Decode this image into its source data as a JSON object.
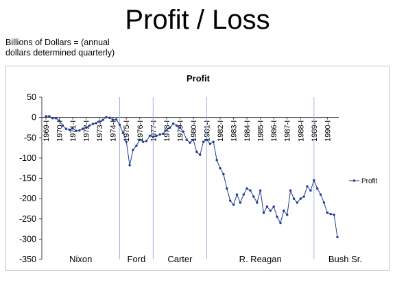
{
  "slide": {
    "title": "Profit / Loss",
    "subtitle_line1": "Billions of Dollars = (annual",
    "subtitle_line2": "dollars determined quarterly)"
  },
  "colors": {
    "series": "#1f3a93",
    "markers": "#1f3a93",
    "presidential_lines": "#9db5dc",
    "axis": "#404040"
  },
  "chart_data": {
    "type": "line",
    "title": "Profit",
    "xlabel": "",
    "ylabel": "",
    "ylim": [
      -350,
      50
    ],
    "yticks": [
      50,
      0,
      -50,
      -100,
      -150,
      -200,
      -250,
      -300,
      -350
    ],
    "grid": false,
    "legend": "right",
    "x_tick_labels": [
      "1969-I",
      "1970-I",
      "1971-I",
      "1972-I",
      "1973-I",
      "1974-I",
      "1975-I",
      "1976-I",
      "1977-I",
      "1978-I",
      "1979-I",
      "1980-I",
      "1981-I",
      "1982-I",
      "1983-I",
      "1984-I",
      "1985-I",
      "1986-I",
      "1987-I",
      "1988-I",
      "1989-I",
      "1990-I"
    ],
    "x_start": "1969-I",
    "presidents": [
      "Nixon",
      "Ford",
      "Carter",
      "R. Reagan",
      "Bush Sr."
    ],
    "term_boundaries": [
      "1974-III",
      "1977-I",
      "1981-I",
      "1989-I"
    ],
    "series": [
      {
        "name": "Profit",
        "values": [
          3,
          3,
          -2,
          -2,
          -8,
          -20,
          -28,
          -30,
          -27,
          -33,
          -32,
          -28,
          -25,
          -20,
          -16,
          -14,
          -10,
          -6,
          1,
          -1,
          -6,
          -5,
          -18,
          -38,
          -60,
          -118,
          -80,
          -70,
          -55,
          -60,
          -58,
          -45,
          -48,
          -45,
          -42,
          -40,
          -32,
          -25,
          -15,
          -20,
          -25,
          -35,
          -55,
          -62,
          -55,
          -85,
          -92,
          -60,
          -55,
          -65,
          -60,
          -105,
          -125,
          -140,
          -175,
          -205,
          -215,
          -190,
          -210,
          -190,
          -175,
          -180,
          -195,
          -210,
          -180,
          -235,
          -220,
          -230,
          -220,
          -245,
          -260,
          -230,
          -240,
          -180,
          -200,
          -210,
          -200,
          -195,
          -170,
          -180,
          -155,
          -175,
          -190,
          -210,
          -235,
          -238,
          -240,
          -295
        ]
      }
    ]
  }
}
